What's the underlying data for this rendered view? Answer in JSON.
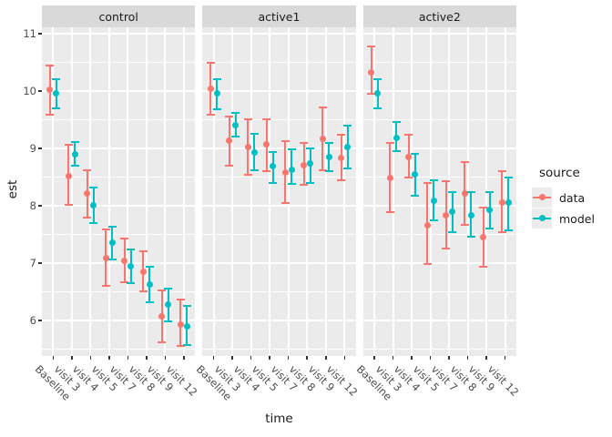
{
  "chart_data": {
    "type": "scatter",
    "title": "",
    "xlabel": "time",
    "ylabel": "est",
    "ylim": [
      5.38,
      11.11
    ],
    "yticks": [
      6,
      7,
      8,
      9,
      10,
      11
    ],
    "grid": true,
    "categories": [
      "Baseline",
      "visit 3",
      "visit 4",
      "visit 5",
      "visit 7",
      "visit 8",
      "visit 9",
      "visit 12"
    ],
    "legend": {
      "title": "source",
      "position": "right",
      "entries": [
        {
          "label": "data",
          "color": "#F8766D"
        },
        {
          "label": "model",
          "color": "#00BFC4"
        }
      ]
    },
    "style": {
      "panel_bg": "#EBEBEB",
      "strip_bg": "#D9D9D9",
      "grid_color": "#FFFFFF",
      "axis_text": "#4D4D4D",
      "title_text": "#1A1A1A",
      "tick_color": "#333333",
      "legend_key_bg": "#ECECEC"
    },
    "facets": [
      {
        "label": "control",
        "series": [
          {
            "name": "data",
            "est": [
              10.02,
              8.51,
              8.21,
              7.08,
              7.04,
              6.85,
              6.07,
              5.93
            ],
            "lo": [
              9.59,
              8.02,
              7.8,
              6.61,
              6.66,
              6.51,
              5.62,
              5.56
            ],
            "hi": [
              10.45,
              9.06,
              8.62,
              7.58,
              7.42,
              7.21,
              6.52,
              6.36
            ]
          },
          {
            "name": "model",
            "est": [
              9.96,
              8.9,
              8.0,
              7.35,
              6.95,
              6.62,
              6.27,
              5.9
            ],
            "lo": [
              9.7,
              8.69,
              7.7,
              7.06,
              6.65,
              6.32,
              5.98,
              5.57
            ],
            "hi": [
              10.21,
              9.11,
              8.31,
              7.63,
              7.23,
              6.93,
              6.56,
              6.26
            ]
          }
        ]
      },
      {
        "label": "active1",
        "series": [
          {
            "name": "data",
            "est": [
              10.04,
              9.13,
              9.02,
              9.07,
              8.58,
              8.71,
              9.16,
              8.83
            ],
            "lo": [
              9.58,
              8.7,
              8.54,
              8.6,
              8.05,
              8.36,
              8.62,
              8.44
            ],
            "hi": [
              10.49,
              9.55,
              9.5,
              9.5,
              9.13,
              9.1,
              9.71,
              9.24
            ]
          },
          {
            "name": "model",
            "est": [
              9.96,
              9.4,
              8.93,
              8.69,
              8.62,
              8.74,
              8.85,
              9.02
            ],
            "lo": [
              9.68,
              9.2,
              8.62,
              8.4,
              8.38,
              8.4,
              8.6,
              8.65
            ],
            "hi": [
              10.21,
              9.62,
              9.25,
              8.93,
              8.98,
              9.0,
              9.1,
              9.4
            ]
          }
        ]
      },
      {
        "label": "active2",
        "series": [
          {
            "name": "data",
            "est": [
              10.32,
              8.49,
              8.85,
              7.65,
              7.83,
              8.21,
              7.45,
              8.05
            ],
            "lo": [
              9.95,
              7.88,
              8.49,
              6.98,
              7.25,
              7.67,
              6.93,
              7.54
            ],
            "hi": [
              10.78,
              9.1,
              9.23,
              8.39,
              8.42,
              8.76,
              7.96,
              8.6
            ]
          },
          {
            "name": "model",
            "est": [
              9.96,
              9.18,
              8.54,
              8.08,
              7.89,
              7.84,
              7.92,
              8.05
            ],
            "lo": [
              9.7,
              8.95,
              8.17,
              7.75,
              7.54,
              7.46,
              7.61,
              7.57
            ],
            "hi": [
              10.21,
              9.46,
              8.9,
              8.44,
              8.23,
              8.23,
              8.24,
              8.49
            ]
          }
        ]
      }
    ]
  }
}
